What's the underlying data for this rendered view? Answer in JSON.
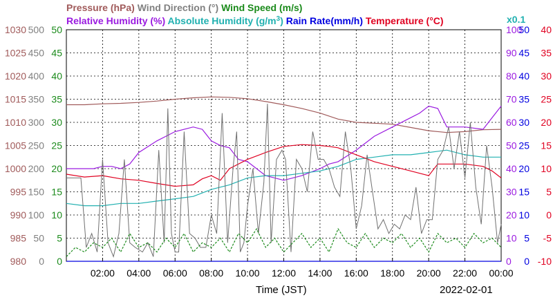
{
  "chart_data": {
    "type": "line",
    "x_unit": "Time (JST)",
    "xlabel": "Time (JST)",
    "date_label": "2022-02-01",
    "x_range": [
      "2022-01-31 00:00",
      "2022-02-01 00:00"
    ],
    "x_ticks": [
      "02:00",
      "04:00",
      "06:00",
      "08:00",
      "10:00",
      "12:00",
      "14:00",
      "16:00",
      "18:00",
      "20:00",
      "22:00",
      "00:00"
    ],
    "grid": true,
    "legend_row1": [
      {
        "label": "Pressure (hPa)",
        "color": "#a05a5a"
      },
      {
        "label": "Wind Direction (°)",
        "color": "#808080"
      },
      {
        "label": "Wind Speed (m/s)",
        "color": "#1a8a1a"
      }
    ],
    "legend_row2": [
      {
        "label": "Relative Humidity (%)",
        "color": "#9a1ae0"
      },
      {
        "label": "Absolute Humidity (g/m",
        "sup": "3",
        "close": ")",
        "color": "#20b0b0"
      },
      {
        "label": "Rain Rate(mm/h)",
        "color": "#0000e0"
      },
      {
        "label": "Temperature (°C)",
        "color": "#e00020"
      }
    ],
    "abs_scale_note": "x0.1",
    "axes": {
      "pressure": {
        "color": "#a05a5a",
        "ticks": [
          "1030",
          "1025",
          "1020",
          "1015",
          "1010",
          "1005",
          "1000",
          "995",
          "990",
          "985",
          "980"
        ],
        "range": [
          980,
          1030
        ]
      },
      "wind_direction": {
        "color": "#808080",
        "ticks": [
          "500",
          "450",
          "400",
          "350",
          "300",
          "250",
          "200",
          "150",
          "100",
          "50",
          "0"
        ],
        "range": [
          0,
          500
        ]
      },
      "wind_speed": {
        "color": "#1a8a1a",
        "ticks": [
          "50",
          "45",
          "40",
          "35",
          "30",
          "25",
          "20",
          "15",
          "10",
          "5",
          "0"
        ],
        "range": [
          0,
          50
        ]
      },
      "humidity": {
        "color": "#9a1ae0",
        "ticks": [
          "100",
          "90",
          "80",
          "70",
          "60",
          "50",
          "40",
          "30",
          "20",
          "10",
          "0"
        ],
        "range": [
          0,
          100
        ]
      },
      "rain": {
        "color": "#0000e0",
        "ticks": [
          "50",
          "45",
          "40",
          "35",
          "30",
          "25",
          "20",
          "15",
          "10",
          "5",
          "0"
        ],
        "range": [
          0,
          50
        ]
      },
      "temperature": {
        "color": "#e00020",
        "ticks": [
          "40",
          "35",
          "30",
          "25",
          "20",
          "15",
          "10",
          "5",
          "0",
          "-5",
          "-10"
        ],
        "range": [
          -10,
          40
        ]
      }
    },
    "series": [
      {
        "name": "Pressure (hPa)",
        "axis": "pressure",
        "color": "#a05a5a",
        "style": "solid",
        "x": [
          0,
          1,
          2,
          3,
          4,
          5,
          6,
          7,
          8,
          9,
          10,
          11,
          12,
          13,
          14,
          15,
          16,
          17,
          18,
          19,
          20,
          21,
          22,
          23,
          24
        ],
        "y": [
          1013.8,
          1013.8,
          1014.0,
          1014.1,
          1014.3,
          1014.6,
          1015.0,
          1015.3,
          1015.5,
          1015.4,
          1015.1,
          1014.5,
          1013.8,
          1013.0,
          1012.0,
          1010.7,
          1010.0,
          1009.8,
          1009.6,
          1008.9,
          1008.2,
          1007.8,
          1008.0,
          1008.4,
          1008.5
        ]
      },
      {
        "name": "Relative Humidity (%)",
        "axis": "humidity",
        "color": "#9a1ae0",
        "style": "solid",
        "x": [
          0,
          1,
          1.5,
          2,
          2.5,
          3,
          3.5,
          4,
          5,
          6,
          7,
          7.5,
          8,
          8.5,
          9,
          9.5,
          10,
          10.5,
          11,
          12,
          13,
          14,
          14.5,
          15,
          16,
          17,
          18,
          19,
          19.5,
          20,
          20.5,
          21,
          22,
          23,
          23.5,
          24
        ],
        "y": [
          40,
          40,
          40,
          41,
          41,
          40,
          42,
          47,
          52,
          56,
          58,
          57,
          52,
          50,
          49,
          44,
          43,
          40,
          37,
          35,
          37,
          40,
          42,
          43,
          48,
          54,
          58,
          62,
          64,
          67,
          66,
          58,
          58,
          57,
          62,
          67
        ]
      },
      {
        "name": "Absolute Humidity",
        "axis": "humidity",
        "color": "#20b0b0",
        "style": "solid",
        "x": [
          0,
          1,
          2,
          3,
          4,
          5,
          6,
          7,
          8,
          9,
          10,
          11,
          12,
          13,
          14,
          15,
          16,
          17,
          18,
          19,
          20,
          21,
          22,
          23,
          24
        ],
        "y": [
          25,
          24,
          24,
          25,
          25,
          26,
          27,
          28,
          31,
          33,
          36,
          37,
          37,
          38,
          39,
          41,
          44,
          45,
          46,
          46,
          47,
          48,
          46,
          45,
          45
        ]
      },
      {
        "name": "Temperature (°C)",
        "axis": "temperature",
        "color": "#e00020",
        "style": "solid",
        "x": [
          0,
          1,
          2,
          3,
          4,
          5,
          6,
          7,
          7.5,
          8,
          8.5,
          9,
          10,
          11,
          12,
          13,
          14,
          14.5,
          15,
          16,
          17,
          18,
          19,
          20,
          20.5,
          21,
          22,
          23,
          23.5,
          24
        ],
        "y": [
          8.8,
          8.2,
          8.5,
          7.8,
          7.5,
          6.8,
          6.2,
          6.5,
          7.8,
          8.5,
          7.5,
          10.0,
          12.0,
          13.5,
          14.8,
          15.2,
          15.0,
          14.8,
          14.5,
          13.0,
          11.5,
          10.5,
          9.5,
          8.5,
          11.0,
          11.0,
          11.0,
          10.5,
          9.5,
          8.0
        ]
      },
      {
        "name": "Wind Direction (°)",
        "axis": "wind_direction",
        "color": "#707070",
        "style": "spiky",
        "x": [
          0,
          0.4,
          0.8,
          1.1,
          1.4,
          1.7,
          2.0,
          2.3,
          2.6,
          2.9,
          3.2,
          3.5,
          3.8,
          4.2,
          4.5,
          4.8,
          5.1,
          5.4,
          5.6,
          5.8,
          6.0,
          6.2,
          6.5,
          6.8,
          7.1,
          7.4,
          7.7,
          8.0,
          8.3,
          8.6,
          8.9,
          9.2,
          9.4,
          9.6,
          9.8,
          10.0,
          10.3,
          10.6,
          10.9,
          11.1,
          11.3,
          11.6,
          11.9,
          12.1,
          12.4,
          12.7,
          13.0,
          13.3,
          13.6,
          13.9,
          14.2,
          14.5,
          14.8,
          15.1,
          15.4,
          15.7,
          16.0,
          16.3,
          16.6,
          16.9,
          17.2,
          17.5,
          17.8,
          18.1,
          18.4,
          18.7,
          19.0,
          19.3,
          19.6,
          19.9,
          20.2,
          20.5,
          20.8,
          21.1,
          21.4,
          21.7,
          22.0,
          22.3,
          22.6,
          22.9,
          23.2,
          23.5,
          23.8,
          24.0
        ],
        "y": [
          180,
          180,
          180,
          30,
          60,
          20,
          220,
          40,
          10,
          60,
          220,
          40,
          30,
          20,
          40,
          10,
          240,
          40,
          330,
          60,
          20,
          20,
          280,
          60,
          50,
          30,
          30,
          100,
          60,
          320,
          40,
          200,
          280,
          20,
          40,
          120,
          200,
          60,
          170,
          340,
          40,
          220,
          240,
          220,
          20,
          220,
          200,
          150,
          280,
          220,
          220,
          200,
          160,
          140,
          280,
          200,
          70,
          120,
          230,
          150,
          70,
          90,
          60,
          80,
          70,
          100,
          90,
          160,
          60,
          90,
          90,
          220,
          240,
          290,
          200,
          280,
          180,
          300,
          160,
          80,
          250,
          160,
          40,
          80
        ]
      },
      {
        "name": "Wind Speed (m/s)",
        "axis": "wind_speed",
        "color": "#1a8a1a",
        "style": "dashed-spiky",
        "x": [
          0,
          0.5,
          1,
          1.5,
          2,
          2.5,
          3,
          3.5,
          4,
          4.5,
          5,
          5.5,
          6,
          6.5,
          7,
          7.5,
          8,
          8.5,
          9,
          9.5,
          10,
          10.5,
          11,
          11.5,
          12,
          12.5,
          13,
          13.5,
          14,
          14.5,
          15,
          15.5,
          16,
          16.5,
          17,
          17.5,
          18,
          18.5,
          19,
          19.5,
          20,
          20.5,
          21,
          21.5,
          22,
          22.5,
          23,
          23.5,
          24
        ],
        "y": [
          1,
          3,
          2,
          4,
          3,
          5,
          2,
          6,
          3,
          4,
          2,
          5,
          3,
          6,
          2,
          4,
          3,
          5,
          2,
          6,
          4,
          7,
          3,
          5,
          2,
          4,
          6,
          3,
          5,
          2,
          7,
          4,
          3,
          6,
          3,
          5,
          4,
          6,
          3,
          5,
          2,
          6,
          4,
          5,
          3,
          6,
          4,
          5,
          3
        ]
      },
      {
        "name": "Rain Rate(mm/h)",
        "axis": "rain",
        "color": "#0000e0",
        "style": "solid",
        "x": [
          0,
          24
        ],
        "y": [
          0,
          0
        ]
      }
    ]
  }
}
